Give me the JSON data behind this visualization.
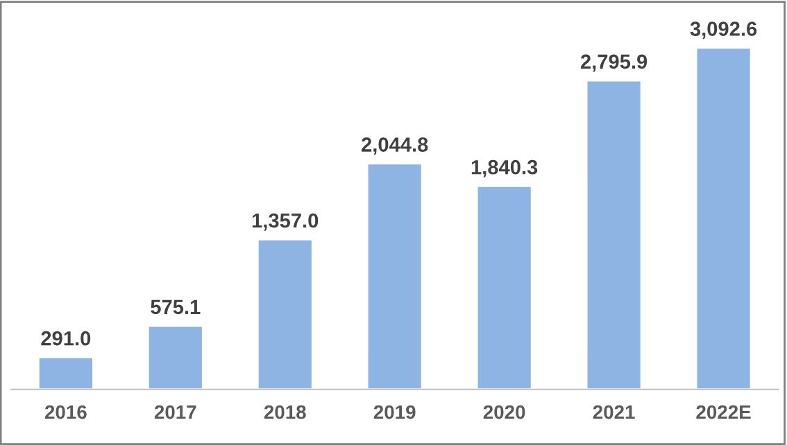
{
  "chart_data": {
    "type": "bar",
    "categories": [
      "2016",
      "2017",
      "2018",
      "2019",
      "2020",
      "2021",
      "2022E"
    ],
    "values": [
      291.0,
      575.1,
      1357.0,
      2044.8,
      1840.3,
      2795.9,
      3092.6
    ],
    "value_labels": [
      "291.0",
      "575.1",
      "1,357.0",
      "2,044.8",
      "1,840.3",
      "2,795.9",
      "3,092.6"
    ],
    "color": "#8db4e2",
    "grid": false,
    "legend": false
  }
}
